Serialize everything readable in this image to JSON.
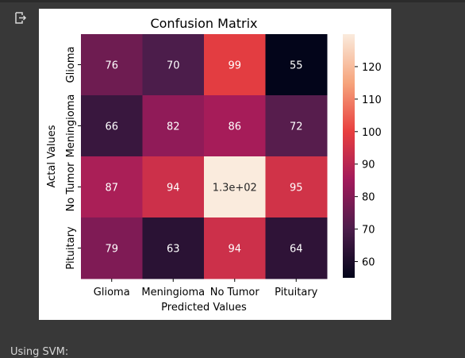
{
  "output_icon": "output-arrow-icon",
  "footer_text": "Using SVM:",
  "chart_data": {
    "type": "heatmap",
    "title": "Confusion Matrix",
    "xlabel": "Predicted Values",
    "ylabel": "Actal Values",
    "x_categories": [
      "Glioma",
      "Meningioma",
      "No Tumor",
      "Pituitary"
    ],
    "y_categories": [
      "Glioma",
      "Meningioma",
      "No Tumor",
      "Pituitary"
    ],
    "values": [
      [
        76,
        70,
        99,
        55
      ],
      [
        66,
        82,
        86,
        72
      ],
      [
        87,
        94,
        130,
        95
      ],
      [
        79,
        63,
        94,
        64
      ]
    ],
    "cell_labels": [
      [
        "76",
        "70",
        "99",
        "55"
      ],
      [
        "66",
        "82",
        "86",
        "72"
      ],
      [
        "87",
        "94",
        "1.3e+02",
        "95"
      ],
      [
        "79",
        "63",
        "94",
        "64"
      ]
    ],
    "colorbar": {
      "min": 55,
      "max": 130,
      "ticks": [
        60,
        70,
        80,
        90,
        100,
        110,
        120
      ]
    },
    "colormap": "rocket"
  }
}
